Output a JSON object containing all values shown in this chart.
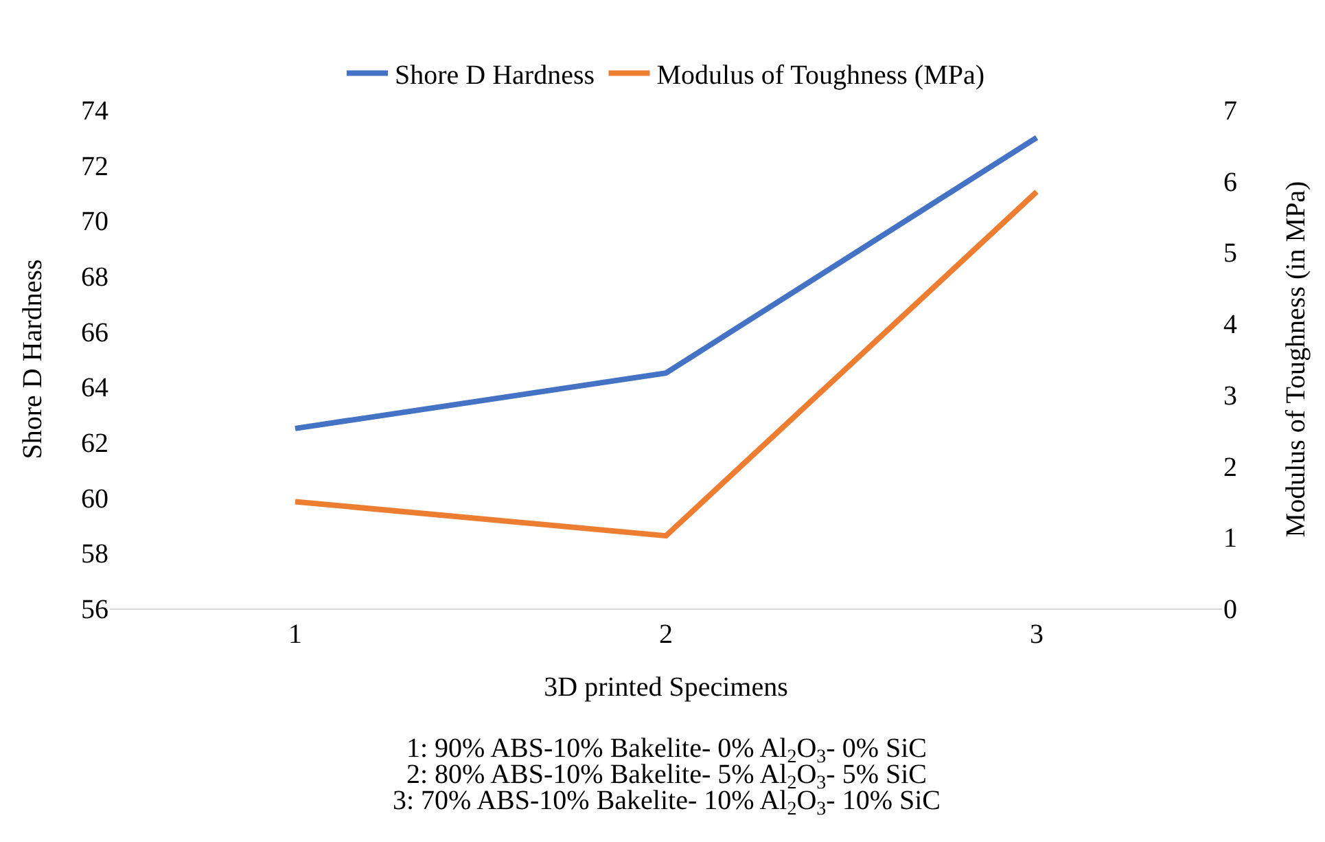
{
  "chart_data": {
    "type": "line",
    "categories": [
      "1",
      "2",
      "3"
    ],
    "series": [
      {
        "name": "Shore D Hardness",
        "color": "#4472c4",
        "values": [
          62.5,
          64.5,
          73
        ]
      },
      {
        "name": "Modulus of Toughness (MPa)",
        "color": "#ed7d31",
        "values": [
          1.5,
          1.02,
          5.85
        ],
        "axis": "y2"
      }
    ],
    "xlabel": "3D printed Specimens",
    "ylabel": "Shore D Hardness",
    "y2label": "Modulus of Toughness (in MPa)",
    "ylim": [
      56,
      74
    ],
    "yticks": [
      56,
      58,
      60,
      62,
      64,
      66,
      68,
      70,
      72,
      74
    ],
    "y2lim": [
      0,
      7
    ],
    "y2ticks": [
      0,
      1,
      2,
      3,
      4,
      5,
      6,
      7
    ],
    "annotations": [
      "1: 90% ABS-10% Bakelite- 0% Al$_{2}$O$_{3}$- 0% SiC",
      "2: 80% ABS-10% Bakelite- 5% Al$_{2}$O$_{3}$- 5% SiC",
      "3: 70% ABS-10% Bakelite- 10% Al$_{2}$O$_{3}$- 10% SiC"
    ],
    "legend": "top",
    "grid": false,
    "marker": "none",
    "line_style": "solid"
  }
}
